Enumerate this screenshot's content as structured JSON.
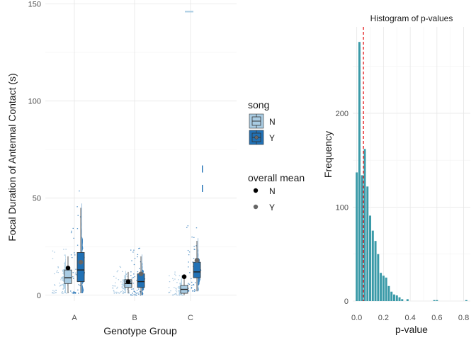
{
  "chart_data": [
    {
      "type": "raincloud",
      "title": "",
      "xlabel": "Genotype Group",
      "ylabel": "Focal Duration of Antennal Contact (s)",
      "categories": [
        "A",
        "B",
        "C"
      ],
      "yticks": [
        0,
        50,
        100,
        150
      ],
      "ylim": [
        -3,
        152
      ],
      "grid": true,
      "legend_position": "right",
      "series": [
        {
          "name": "N",
          "color": "#a9cce3",
          "box": [
            {
              "cat": "A",
              "q1": 6,
              "median": 9,
              "q3": 13,
              "whisker_low": 1,
              "whisker_high": 20
            },
            {
              "cat": "B",
              "q1": 4,
              "median": 6,
              "q3": 8,
              "whisker_low": 1,
              "whisker_high": 12
            },
            {
              "cat": "C",
              "q1": 1,
              "median": 3,
              "q3": 5,
              "whisker_low": 0,
              "whisker_high": 10
            }
          ]
        },
        {
          "name": "Y",
          "color": "#2171b5",
          "box": [
            {
              "cat": "A",
              "q1": 7,
              "median": 13,
              "q3": 22,
              "whisker_low": 1,
              "whisker_high": 45
            },
            {
              "cat": "B",
              "q1": 4,
              "median": 7,
              "q3": 11,
              "whisker_low": 0,
              "whisker_high": 20
            },
            {
              "cat": "C",
              "q1": 9,
              "median": 12,
              "q3": 17,
              "whisker_low": 2,
              "whisker_high": 28
            }
          ]
        }
      ],
      "overall_mean": [
        {
          "name": "N",
          "color": "#000000",
          "values": [
            {
              "cat": "A",
              "y": 14
            },
            {
              "cat": "B",
              "y": 7
            },
            {
              "cat": "C",
              "y": 9.5
            }
          ]
        },
        {
          "name": "Y",
          "color": "#666666",
          "values": [
            {
              "cat": "A",
              "y": 17
            },
            {
              "cat": "B",
              "y": 11
            },
            {
              "cat": "C",
              "y": 18
            }
          ]
        }
      ],
      "outliers_Y": [
        {
          "cat": "C",
          "y": 65
        },
        {
          "cat": "C",
          "y": 55
        }
      ],
      "outliers_N": [
        {
          "cat": "C",
          "y": 146
        }
      ],
      "legend": {
        "song_title": "song",
        "song_items": [
          "N",
          "Y"
        ],
        "mean_title": "overall mean",
        "mean_items": [
          "N",
          "Y"
        ]
      }
    },
    {
      "type": "bar",
      "title": "Histogram of p-values",
      "xlabel": "p-value",
      "ylabel": "Frequency",
      "xticks": [
        "0.0",
        "0.2",
        "0.4",
        "0.6",
        "0.8"
      ],
      "yticks": [
        0,
        100,
        200
      ],
      "xlim": [
        -0.03,
        0.85
      ],
      "ylim": [
        0,
        292
      ],
      "bin_width": 0.02,
      "bin_starts": [
        -0.01,
        0.01,
        0.03,
        0.05,
        0.07,
        0.09,
        0.11,
        0.13,
        0.15,
        0.17,
        0.19,
        0.21,
        0.23,
        0.25,
        0.27,
        0.29,
        0.31,
        0.33,
        0.35,
        0.37,
        0.39,
        0.41,
        0.43,
        0.45,
        0.47,
        0.49,
        0.51,
        0.53,
        0.55,
        0.57,
        0.59,
        0.61,
        0.63,
        0.65,
        0.67,
        0.69,
        0.71,
        0.73,
        0.75,
        0.77,
        0.79,
        0.81
      ],
      "values": [
        137,
        276,
        134,
        162,
        122,
        91,
        75,
        64,
        50,
        30,
        27,
        25,
        16,
        10,
        7,
        6,
        4,
        2,
        0,
        2,
        0,
        0,
        0,
        0,
        0,
        0,
        0,
        0,
        0,
        1,
        1,
        0,
        0,
        0,
        0,
        0,
        0,
        0,
        0,
        0,
        0,
        1
      ],
      "bar_color": "#3a9aa8",
      "vline": {
        "x": 0.05,
        "color": "#e41a1c",
        "style": "dashed"
      },
      "grid": true
    }
  ]
}
